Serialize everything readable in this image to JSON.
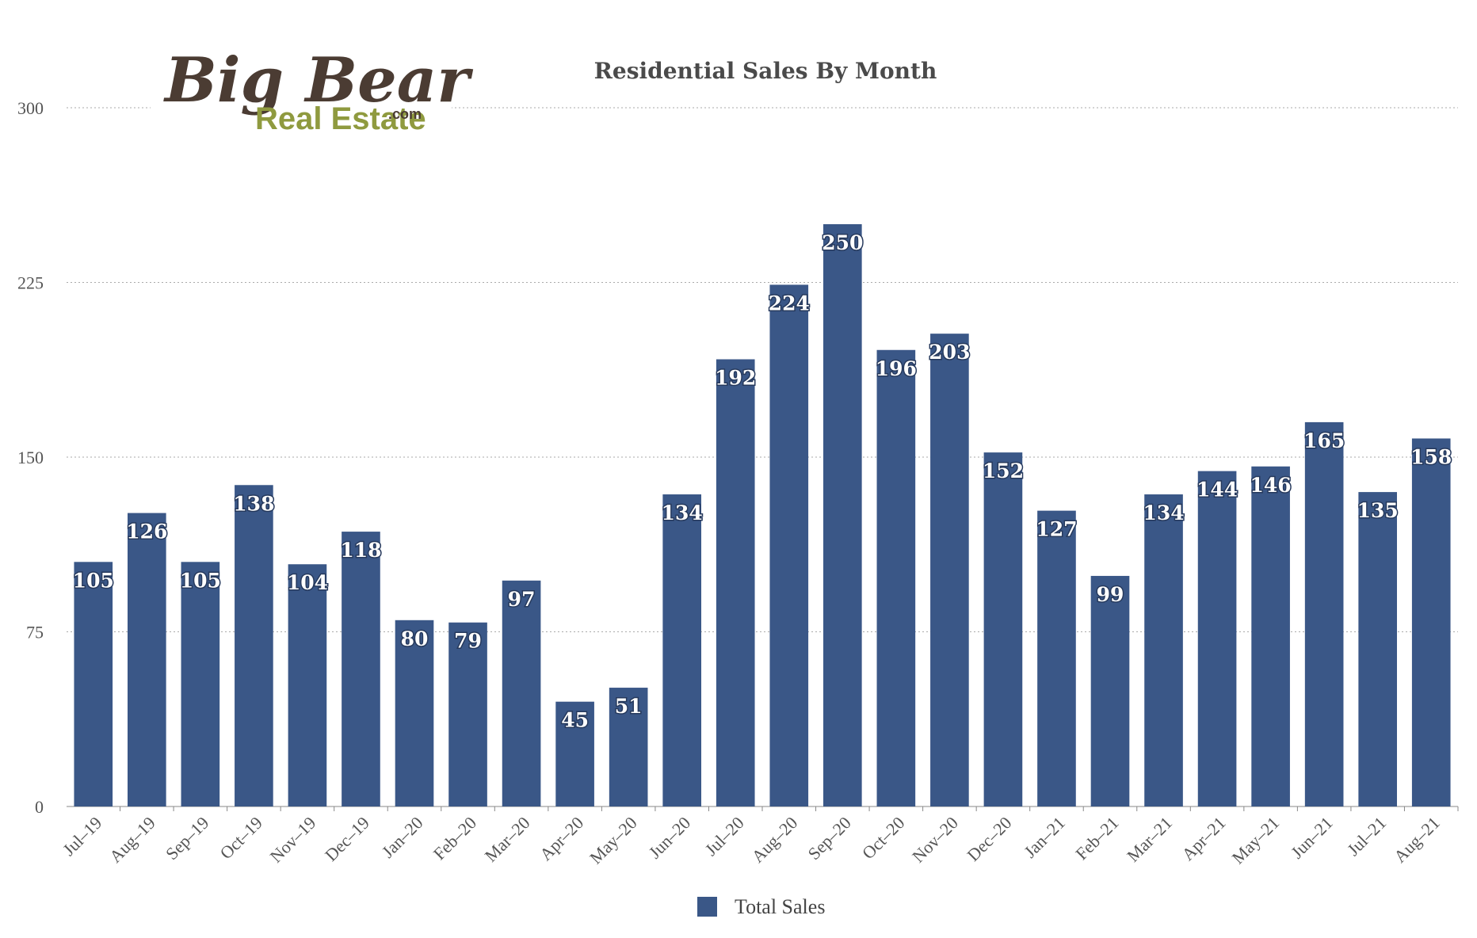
{
  "logo": {
    "line1": "Big Bear",
    "line2": "Real Estate",
    "suffix": ".com"
  },
  "colors": {
    "bar": "#3a5787",
    "grid": "#aaaaaa",
    "text": "#555555"
  },
  "legend": {
    "label": "Total Sales",
    "placement": "bottom-center"
  },
  "chart_data": {
    "type": "bar",
    "title": "Residential Sales By Month",
    "xlabel": "",
    "ylabel": "",
    "ylim": [
      0,
      300
    ],
    "yticks": [
      "0",
      "75",
      "150",
      "225",
      "300"
    ],
    "grid": true,
    "categories": [
      "Jul–19",
      "Aug–19",
      "Sep–19",
      "Oct–19",
      "Nov–19",
      "Dec–19",
      "Jan–20",
      "Feb–20",
      "Mar–20",
      "Apr–20",
      "May–20",
      "Jun–20",
      "Jul–20",
      "Aug–20",
      "Sep–20",
      "Oct–20",
      "Nov–20",
      "Dec–20",
      "Jan–21",
      "Feb–21",
      "Mar–21",
      "Apr–21",
      "May–21",
      "Jun–21",
      "Jul–21",
      "Aug–21"
    ],
    "series": [
      {
        "name": "Total Sales",
        "values": [
          105,
          126,
          105,
          138,
          104,
          118,
          80,
          79,
          97,
          45,
          51,
          134,
          192,
          224,
          250,
          196,
          203,
          152,
          127,
          99,
          134,
          144,
          146,
          165,
          135,
          158
        ]
      }
    ]
  }
}
